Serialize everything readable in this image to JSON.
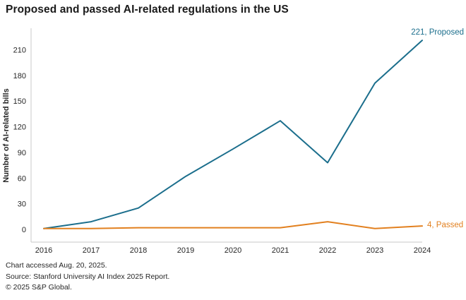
{
  "page": {
    "background_color": "#ffffff"
  },
  "chart_data": {
    "type": "line",
    "title": "Proposed and passed AI-related regulations in the US",
    "ylabel": "Number of AI-related bills",
    "x": [
      2016,
      2017,
      2018,
      2019,
      2020,
      2021,
      2022,
      2023,
      2024
    ],
    "yticks": [
      0,
      30,
      60,
      90,
      120,
      150,
      180,
      210
    ],
    "ylim": [
      0,
      225
    ],
    "grid": false,
    "legend_position": "inline-end-of-line-labels",
    "axis_color": "#c9c9c9",
    "tick_label_color": "#262626",
    "series": [
      {
        "name": "Proposed",
        "color": "#1b6e8c",
        "values": [
          1,
          9,
          25,
          62,
          94,
          127,
          78,
          171,
          221
        ],
        "end_label": "221, Proposed"
      },
      {
        "name": "Passed",
        "color": "#e2801f",
        "values": [
          1,
          1,
          2,
          2,
          2,
          2,
          9,
          1,
          4
        ],
        "end_label": "4, Passed"
      }
    ]
  },
  "footer": {
    "lines": [
      "Chart accessed Aug. 20, 2025.",
      "Source: Stanford University AI Index 2025 Report.",
      "© 2025 S&P Global."
    ]
  }
}
